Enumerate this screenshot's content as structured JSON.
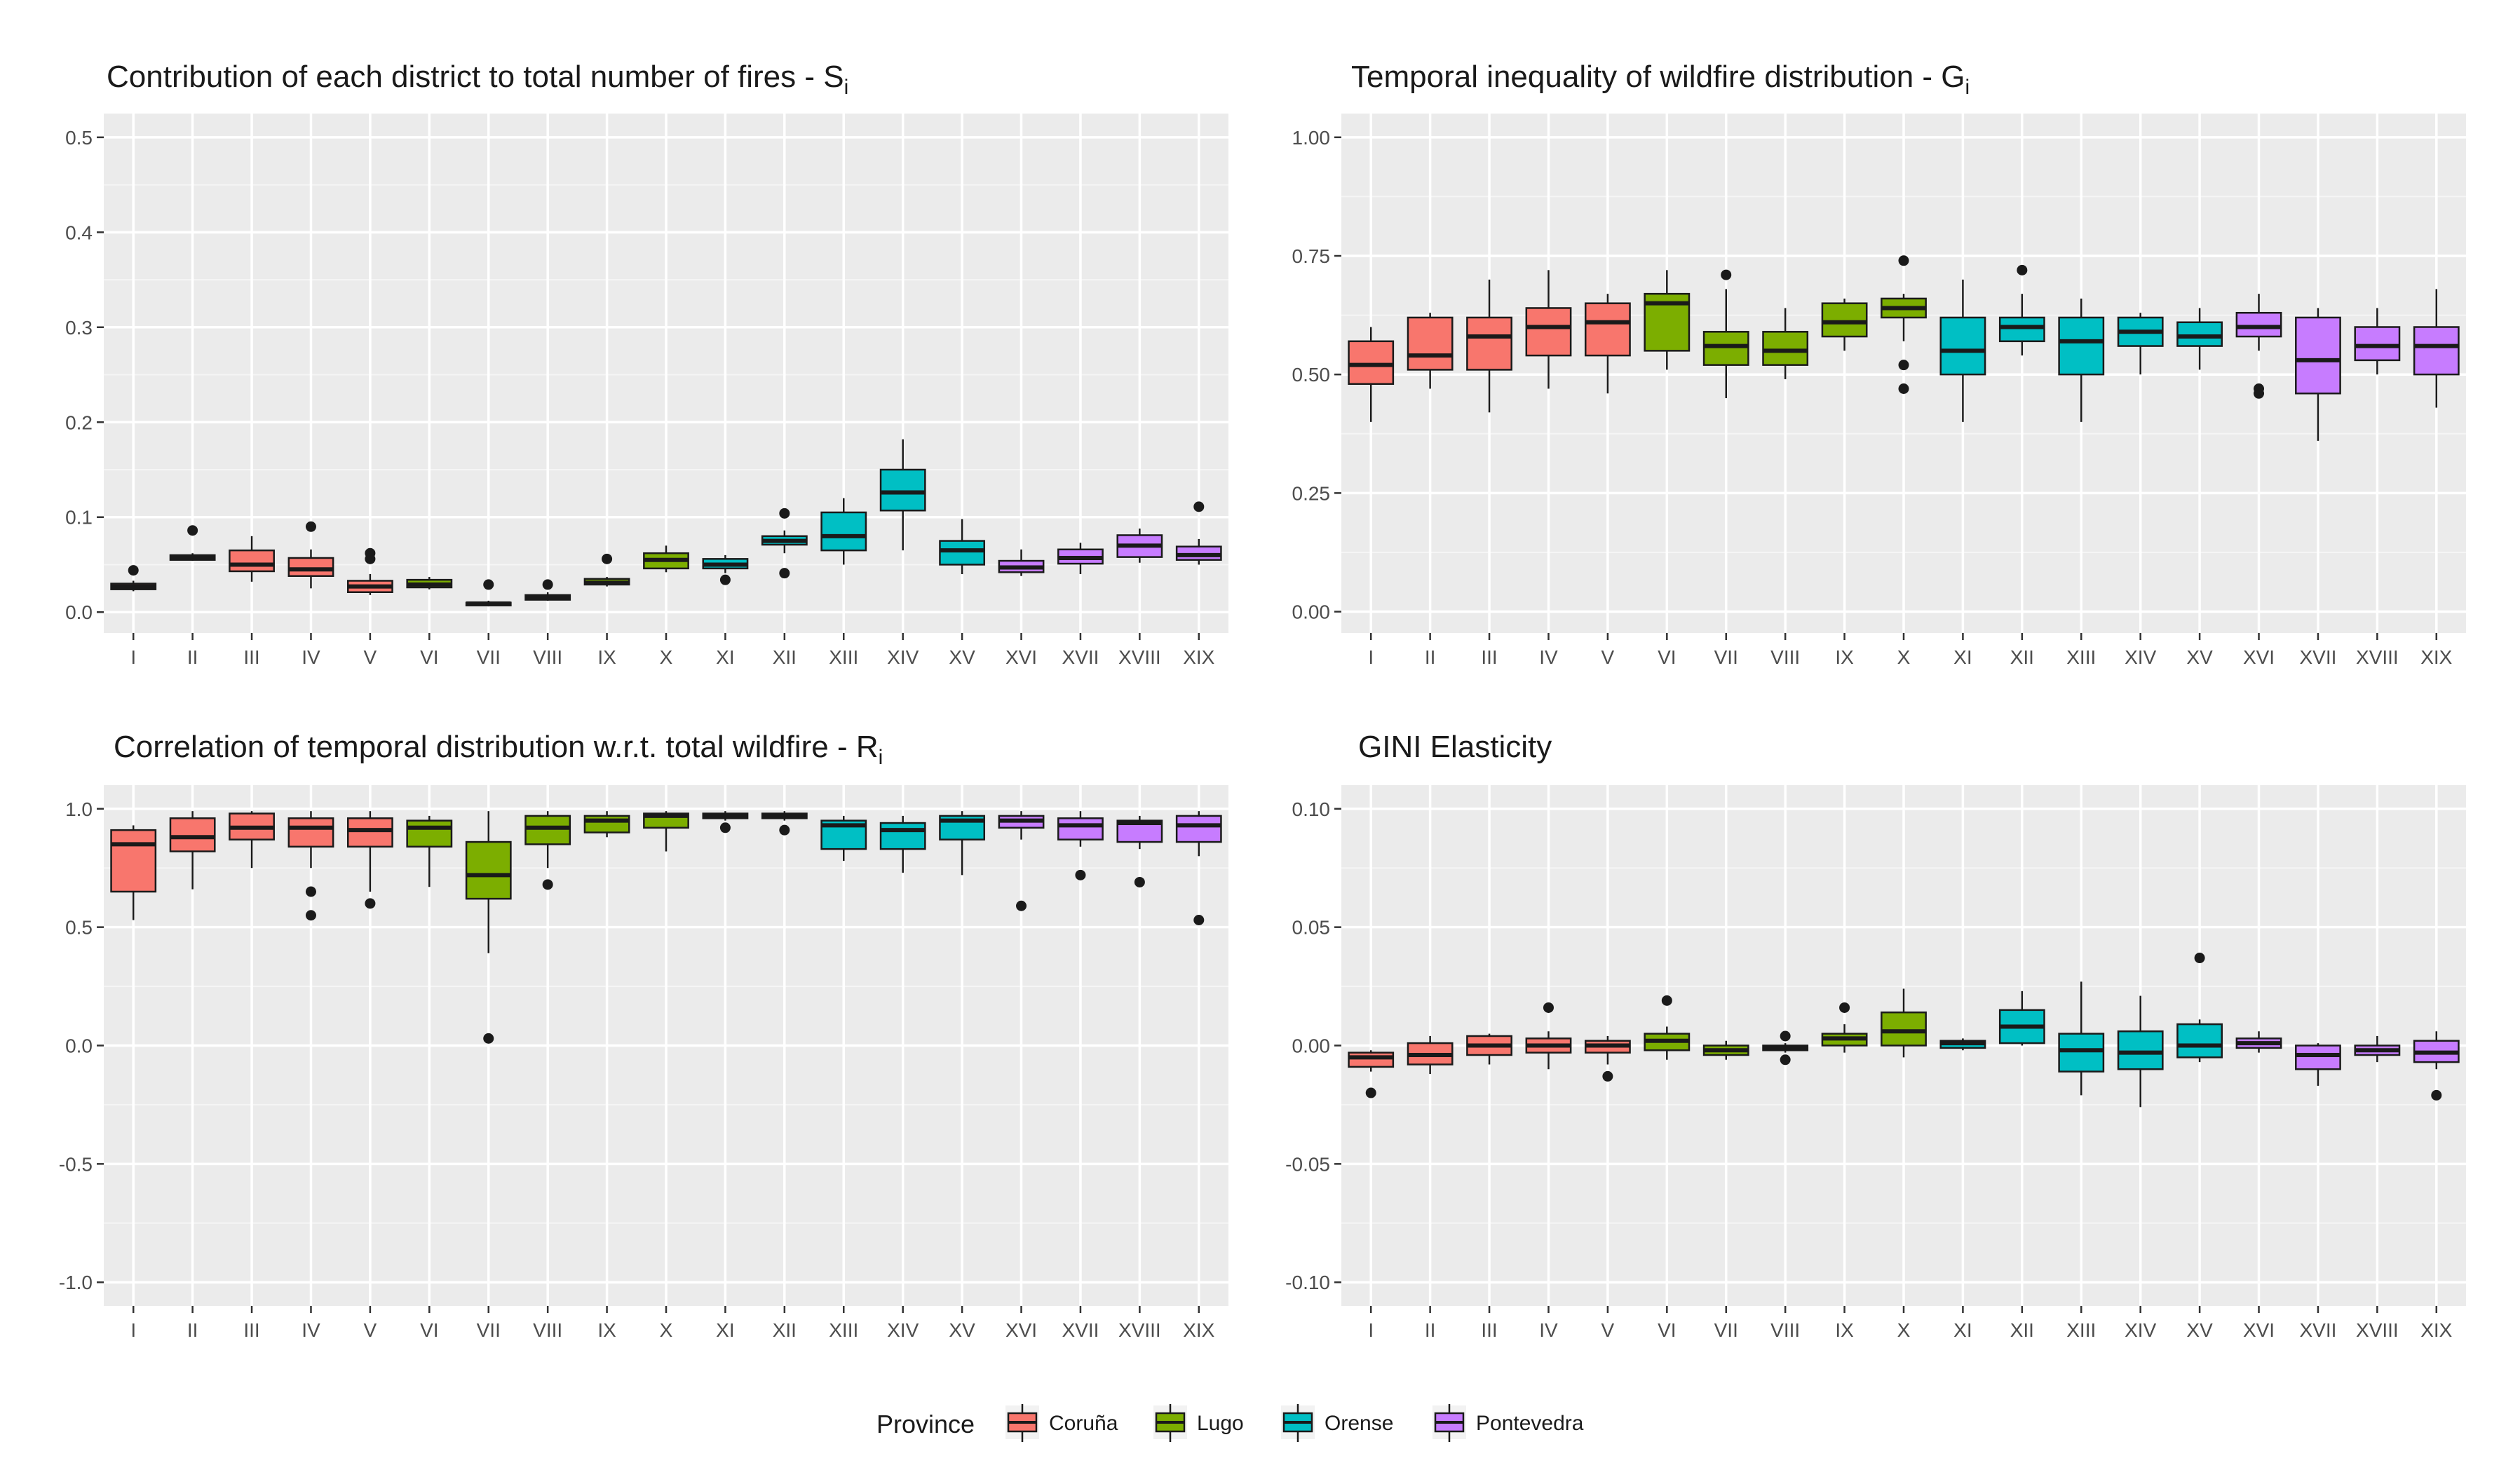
{
  "colors": {
    "panel_bg": "#ebebeb",
    "grid_major": "#ffffff",
    "grid_minor": "#f5f5f5",
    "box_line": "#1a1a1a",
    "tick_text": "#4d4d4d"
  },
  "legend": {
    "title": "Province",
    "items": [
      {
        "label": "Coruña",
        "color": "#F8766D"
      },
      {
        "label": "Lugo",
        "color": "#7CAE00"
      },
      {
        "label": "Orense",
        "color": "#00BFC4"
      },
      {
        "label": "Pontevedra",
        "color": "#C77CFF"
      }
    ]
  },
  "chart_data": [
    {
      "type": "boxplot",
      "title": "Contribution of each district to total number of fires - S",
      "title_subscript": "i",
      "categories": [
        "I",
        "II",
        "III",
        "IV",
        "V",
        "VI",
        "VII",
        "VIII",
        "IX",
        "X",
        "XI",
        "XII",
        "XIII",
        "XIV",
        "XV",
        "XVI",
        "XVII",
        "XVIII",
        "XIX"
      ],
      "province_index": [
        0,
        0,
        0,
        0,
        0,
        1,
        1,
        1,
        1,
        1,
        2,
        2,
        2,
        2,
        2,
        3,
        3,
        3,
        3
      ],
      "ylim": [
        -0.022,
        0.525
      ],
      "yticks": [
        0.0,
        0.1,
        0.2,
        0.3,
        0.4,
        0.5
      ],
      "ytick_labels": [
        "0.0",
        "0.1",
        "0.2",
        "0.3",
        "0.4",
        "0.5"
      ],
      "boxes": [
        {
          "min": 0.022,
          "q1": 0.024,
          "med": 0.027,
          "q3": 0.03,
          "max": 0.033,
          "out": [
            0.044
          ]
        },
        {
          "min": 0.054,
          "q1": 0.055,
          "med": 0.057,
          "q3": 0.06,
          "max": 0.062,
          "out": [
            0.086
          ]
        },
        {
          "min": 0.032,
          "q1": 0.043,
          "med": 0.05,
          "q3": 0.065,
          "max": 0.08,
          "out": []
        },
        {
          "min": 0.025,
          "q1": 0.038,
          "med": 0.045,
          "q3": 0.057,
          "max": 0.066,
          "out": [
            0.09
          ]
        },
        {
          "min": 0.018,
          "q1": 0.021,
          "med": 0.027,
          "q3": 0.033,
          "max": 0.04,
          "out": [
            0.056,
            0.062
          ]
        },
        {
          "min": 0.024,
          "q1": 0.026,
          "med": 0.029,
          "q3": 0.034,
          "max": 0.037,
          "out": []
        },
        {
          "min": 0.006,
          "q1": 0.007,
          "med": 0.009,
          "q3": 0.01,
          "max": 0.012,
          "out": [
            0.029
          ]
        },
        {
          "min": 0.012,
          "q1": 0.013,
          "med": 0.016,
          "q3": 0.018,
          "max": 0.021,
          "out": [
            0.029
          ]
        },
        {
          "min": 0.027,
          "q1": 0.029,
          "med": 0.031,
          "q3": 0.035,
          "max": 0.037,
          "out": [
            0.056
          ]
        },
        {
          "min": 0.042,
          "q1": 0.046,
          "med": 0.055,
          "q3": 0.062,
          "max": 0.07,
          "out": []
        },
        {
          "min": 0.041,
          "q1": 0.046,
          "med": 0.05,
          "q3": 0.056,
          "max": 0.06,
          "out": [
            0.034
          ]
        },
        {
          "min": 0.062,
          "q1": 0.071,
          "med": 0.075,
          "q3": 0.08,
          "max": 0.086,
          "out": [
            0.104,
            0.041
          ]
        },
        {
          "min": 0.05,
          "q1": 0.065,
          "med": 0.08,
          "q3": 0.105,
          "max": 0.12,
          "out": []
        },
        {
          "min": 0.065,
          "q1": 0.107,
          "med": 0.126,
          "q3": 0.15,
          "max": 0.182,
          "out": []
        },
        {
          "min": 0.04,
          "q1": 0.05,
          "med": 0.065,
          "q3": 0.075,
          "max": 0.098,
          "out": []
        },
        {
          "min": 0.038,
          "q1": 0.042,
          "med": 0.047,
          "q3": 0.054,
          "max": 0.066,
          "out": []
        },
        {
          "min": 0.04,
          "q1": 0.051,
          "med": 0.057,
          "q3": 0.066,
          "max": 0.073,
          "out": []
        },
        {
          "min": 0.052,
          "q1": 0.058,
          "med": 0.07,
          "q3": 0.081,
          "max": 0.088,
          "out": []
        },
        {
          "min": 0.05,
          "q1": 0.055,
          "med": 0.06,
          "q3": 0.069,
          "max": 0.077,
          "out": [
            0.111
          ]
        }
      ]
    },
    {
      "type": "boxplot",
      "title": "Temporal inequality of wildfire distribution - G",
      "title_subscript": "i",
      "categories": [
        "I",
        "II",
        "III",
        "IV",
        "V",
        "VI",
        "VII",
        "VIII",
        "IX",
        "X",
        "XI",
        "XII",
        "XIII",
        "XIV",
        "XV",
        "XVI",
        "XVII",
        "XVIII",
        "XIX"
      ],
      "province_index": [
        0,
        0,
        0,
        0,
        0,
        1,
        1,
        1,
        1,
        1,
        2,
        2,
        2,
        2,
        2,
        3,
        3,
        3,
        3
      ],
      "ylim": [
        -0.045,
        1.05
      ],
      "yticks": [
        0.0,
        0.25,
        0.5,
        0.75,
        1.0
      ],
      "ytick_labels": [
        "0.00",
        "0.25",
        "0.50",
        "0.75",
        "1.00"
      ],
      "boxes": [
        {
          "min": 0.4,
          "q1": 0.48,
          "med": 0.52,
          "q3": 0.57,
          "max": 0.6,
          "out": []
        },
        {
          "min": 0.47,
          "q1": 0.51,
          "med": 0.54,
          "q3": 0.62,
          "max": 0.63,
          "out": []
        },
        {
          "min": 0.42,
          "q1": 0.51,
          "med": 0.58,
          "q3": 0.62,
          "max": 0.7,
          "out": []
        },
        {
          "min": 0.47,
          "q1": 0.54,
          "med": 0.6,
          "q3": 0.64,
          "max": 0.72,
          "out": []
        },
        {
          "min": 0.46,
          "q1": 0.54,
          "med": 0.61,
          "q3": 0.65,
          "max": 0.67,
          "out": []
        },
        {
          "min": 0.51,
          "q1": 0.55,
          "med": 0.65,
          "q3": 0.67,
          "max": 0.72,
          "out": []
        },
        {
          "min": 0.45,
          "q1": 0.52,
          "med": 0.56,
          "q3": 0.59,
          "max": 0.68,
          "out": [
            0.71
          ]
        },
        {
          "min": 0.49,
          "q1": 0.52,
          "med": 0.55,
          "q3": 0.59,
          "max": 0.64,
          "out": []
        },
        {
          "min": 0.55,
          "q1": 0.58,
          "med": 0.61,
          "q3": 0.65,
          "max": 0.66,
          "out": []
        },
        {
          "min": 0.57,
          "q1": 0.62,
          "med": 0.64,
          "q3": 0.66,
          "max": 0.67,
          "out": [
            0.74,
            0.52,
            0.47
          ]
        },
        {
          "min": 0.4,
          "q1": 0.5,
          "med": 0.55,
          "q3": 0.62,
          "max": 0.7,
          "out": []
        },
        {
          "min": 0.54,
          "q1": 0.57,
          "med": 0.6,
          "q3": 0.62,
          "max": 0.67,
          "out": [
            0.72
          ]
        },
        {
          "min": 0.4,
          "q1": 0.5,
          "med": 0.57,
          "q3": 0.62,
          "max": 0.66,
          "out": []
        },
        {
          "min": 0.5,
          "q1": 0.56,
          "med": 0.59,
          "q3": 0.62,
          "max": 0.63,
          "out": []
        },
        {
          "min": 0.51,
          "q1": 0.56,
          "med": 0.58,
          "q3": 0.61,
          "max": 0.64,
          "out": []
        },
        {
          "min": 0.55,
          "q1": 0.58,
          "med": 0.6,
          "q3": 0.63,
          "max": 0.67,
          "out": [
            0.47,
            0.46
          ]
        },
        {
          "min": 0.36,
          "q1": 0.46,
          "med": 0.53,
          "q3": 0.62,
          "max": 0.64,
          "out": []
        },
        {
          "min": 0.5,
          "q1": 0.53,
          "med": 0.56,
          "q3": 0.6,
          "max": 0.64,
          "out": []
        },
        {
          "min": 0.43,
          "q1": 0.5,
          "med": 0.56,
          "q3": 0.6,
          "max": 0.68,
          "out": []
        }
      ]
    },
    {
      "type": "boxplot",
      "title": "Correlation of temporal distribution w.r.t. total wildfire - R",
      "title_subscript": "i",
      "categories": [
        "I",
        "II",
        "III",
        "IV",
        "V",
        "VI",
        "VII",
        "VIII",
        "IX",
        "X",
        "XI",
        "XII",
        "XIII",
        "XIV",
        "XV",
        "XVI",
        "XVII",
        "XVIII",
        "XIX"
      ],
      "province_index": [
        0,
        0,
        0,
        0,
        0,
        1,
        1,
        1,
        1,
        1,
        2,
        2,
        2,
        2,
        2,
        3,
        3,
        3,
        3
      ],
      "ylim": [
        -1.1,
        1.1
      ],
      "yticks": [
        -1.0,
        -0.5,
        0.0,
        0.5,
        1.0
      ],
      "ytick_labels": [
        "-1.0",
        "-0.5",
        "0.0",
        "0.5",
        "1.0"
      ],
      "boxes": [
        {
          "min": 0.53,
          "q1": 0.65,
          "med": 0.85,
          "q3": 0.91,
          "max": 0.93,
          "out": []
        },
        {
          "min": 0.66,
          "q1": 0.82,
          "med": 0.88,
          "q3": 0.96,
          "max": 0.99,
          "out": []
        },
        {
          "min": 0.75,
          "q1": 0.87,
          "med": 0.92,
          "q3": 0.98,
          "max": 0.99,
          "out": []
        },
        {
          "min": 0.75,
          "q1": 0.84,
          "med": 0.92,
          "q3": 0.96,
          "max": 0.99,
          "out": [
            0.65,
            0.55
          ]
        },
        {
          "min": 0.65,
          "q1": 0.84,
          "med": 0.91,
          "q3": 0.96,
          "max": 0.99,
          "out": [
            0.6
          ]
        },
        {
          "min": 0.67,
          "q1": 0.84,
          "med": 0.92,
          "q3": 0.95,
          "max": 0.97,
          "out": []
        },
        {
          "min": 0.39,
          "q1": 0.62,
          "med": 0.72,
          "q3": 0.86,
          "max": 0.99,
          "out": [
            0.03
          ]
        },
        {
          "min": 0.75,
          "q1": 0.85,
          "med": 0.92,
          "q3": 0.97,
          "max": 0.99,
          "out": [
            0.68
          ]
        },
        {
          "min": 0.88,
          "q1": 0.9,
          "med": 0.95,
          "q3": 0.97,
          "max": 0.99,
          "out": []
        },
        {
          "min": 0.82,
          "q1": 0.92,
          "med": 0.97,
          "q3": 0.98,
          "max": 0.99,
          "out": []
        },
        {
          "min": 0.95,
          "q1": 0.96,
          "med": 0.97,
          "q3": 0.98,
          "max": 0.99,
          "out": [
            0.92
          ]
        },
        {
          "min": 0.95,
          "q1": 0.96,
          "med": 0.97,
          "q3": 0.98,
          "max": 0.99,
          "out": [
            0.91
          ]
        },
        {
          "min": 0.78,
          "q1": 0.83,
          "med": 0.93,
          "q3": 0.95,
          "max": 0.97,
          "out": []
        },
        {
          "min": 0.73,
          "q1": 0.83,
          "med": 0.91,
          "q3": 0.94,
          "max": 0.97,
          "out": []
        },
        {
          "min": 0.72,
          "q1": 0.87,
          "med": 0.95,
          "q3": 0.97,
          "max": 0.99,
          "out": []
        },
        {
          "min": 0.87,
          "q1": 0.92,
          "med": 0.95,
          "q3": 0.97,
          "max": 0.99,
          "out": [
            0.59
          ]
        },
        {
          "min": 0.84,
          "q1": 0.87,
          "med": 0.93,
          "q3": 0.96,
          "max": 0.99,
          "out": [
            0.72
          ]
        },
        {
          "min": 0.83,
          "q1": 0.86,
          "med": 0.94,
          "q3": 0.95,
          "max": 0.97,
          "out": [
            0.69
          ]
        },
        {
          "min": 0.8,
          "q1": 0.86,
          "med": 0.93,
          "q3": 0.97,
          "max": 0.99,
          "out": [
            0.53
          ]
        }
      ]
    },
    {
      "type": "boxplot",
      "title": "GINI Elasticity",
      "title_subscript": "",
      "categories": [
        "I",
        "II",
        "III",
        "IV",
        "V",
        "VI",
        "VII",
        "VIII",
        "IX",
        "X",
        "XI",
        "XII",
        "XIII",
        "XIV",
        "XV",
        "XVI",
        "XVII",
        "XVIII",
        "XIX"
      ],
      "province_index": [
        0,
        0,
        0,
        0,
        0,
        1,
        1,
        1,
        1,
        1,
        2,
        2,
        2,
        2,
        2,
        3,
        3,
        3,
        3
      ],
      "ylim": [
        -0.11,
        0.11
      ],
      "yticks": [
        -0.1,
        -0.05,
        0.0,
        0.05,
        0.1
      ],
      "ytick_labels": [
        "-0.10",
        "-0.05",
        "0.00",
        "0.05",
        "0.10"
      ],
      "boxes": [
        {
          "min": -0.011,
          "q1": -0.009,
          "med": -0.005,
          "q3": -0.003,
          "max": -0.002,
          "out": [
            -0.02
          ]
        },
        {
          "min": -0.012,
          "q1": -0.008,
          "med": -0.004,
          "q3": 0.001,
          "max": 0.004,
          "out": []
        },
        {
          "min": -0.008,
          "q1": -0.004,
          "med": 0.0,
          "q3": 0.004,
          "max": 0.005,
          "out": []
        },
        {
          "min": -0.01,
          "q1": -0.003,
          "med": 0.0,
          "q3": 0.003,
          "max": 0.006,
          "out": [
            0.016
          ]
        },
        {
          "min": -0.008,
          "q1": -0.003,
          "med": 0.0,
          "q3": 0.002,
          "max": 0.004,
          "out": [
            -0.013
          ]
        },
        {
          "min": -0.006,
          "q1": -0.002,
          "med": 0.002,
          "q3": 0.005,
          "max": 0.008,
          "out": [
            0.019
          ]
        },
        {
          "min": -0.006,
          "q1": -0.004,
          "med": -0.002,
          "q3": 0.0,
          "max": 0.002,
          "out": []
        },
        {
          "min": -0.003,
          "q1": -0.002,
          "med": -0.001,
          "q3": 0.0,
          "max": 0.001,
          "out": [
            0.004,
            -0.006
          ]
        },
        {
          "min": -0.003,
          "q1": 0.0,
          "med": 0.003,
          "q3": 0.005,
          "max": 0.009,
          "out": [
            0.016
          ]
        },
        {
          "min": -0.005,
          "q1": 0.0,
          "med": 0.006,
          "q3": 0.014,
          "max": 0.024,
          "out": []
        },
        {
          "min": -0.002,
          "q1": -0.001,
          "med": 0.001,
          "q3": 0.002,
          "max": 0.003,
          "out": []
        },
        {
          "min": 0.0,
          "q1": 0.001,
          "med": 0.008,
          "q3": 0.015,
          "max": 0.023,
          "out": []
        },
        {
          "min": -0.021,
          "q1": -0.011,
          "med": -0.002,
          "q3": 0.005,
          "max": 0.027,
          "out": []
        },
        {
          "min": -0.026,
          "q1": -0.01,
          "med": -0.003,
          "q3": 0.006,
          "max": 0.021,
          "out": []
        },
        {
          "min": -0.007,
          "q1": -0.005,
          "med": 0.0,
          "q3": 0.009,
          "max": 0.011,
          "out": [
            0.037
          ]
        },
        {
          "min": -0.003,
          "q1": -0.001,
          "med": 0.001,
          "q3": 0.003,
          "max": 0.006,
          "out": []
        },
        {
          "min": -0.017,
          "q1": -0.01,
          "med": -0.004,
          "q3": 0.0,
          "max": 0.001,
          "out": []
        },
        {
          "min": -0.007,
          "q1": -0.004,
          "med": -0.002,
          "q3": 0.0,
          "max": 0.004,
          "out": []
        },
        {
          "min": -0.01,
          "q1": -0.007,
          "med": -0.003,
          "q3": 0.002,
          "max": 0.006,
          "out": [
            -0.021
          ]
        }
      ]
    }
  ]
}
